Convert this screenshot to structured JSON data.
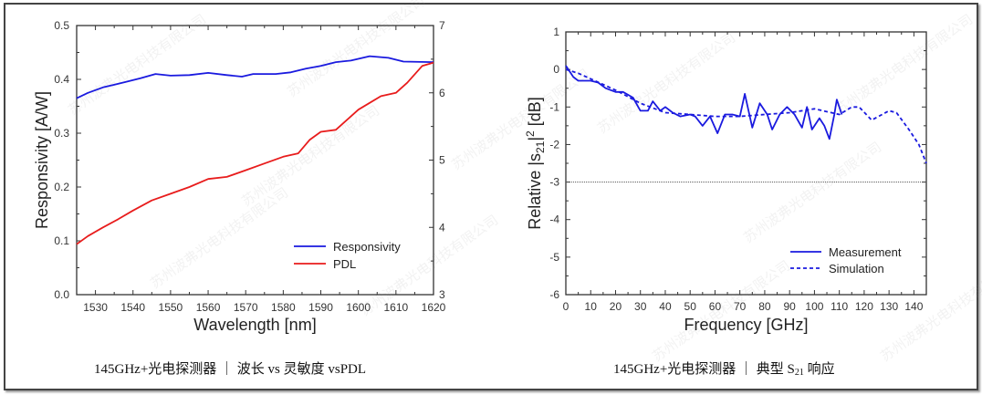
{
  "watermark": "苏州波弗光电科技有限公司",
  "captions": {
    "left": "145GHz+光电探测器 ｜ 波长 vs 灵敏度 vsPDL",
    "right_pre": "145GHz+光电探测器 ｜ 典型 S",
    "right_sub": "21",
    "right_post": " 响应"
  },
  "chart_data": [
    {
      "type": "line",
      "xlabel": "Wavelength  [nm]",
      "ylabel": "Responsivity  [A/W]",
      "xlim": [
        1525,
        1620
      ],
      "ylim": [
        0,
        0.5
      ],
      "y2lim": [
        3,
        7
      ],
      "xticks": [
        1530,
        1540,
        1550,
        1560,
        1570,
        1580,
        1590,
        1600,
        1610,
        1620
      ],
      "yticks": [
        "0.0",
        "0.1",
        "0.2",
        "0.3",
        "0.4",
        "0.5"
      ],
      "y2ticks": [
        "3",
        "4",
        "5",
        "6",
        "7"
      ],
      "grid": false,
      "legend_position": "bottom-right",
      "series": [
        {
          "name": "Responsivity",
          "axis": "left",
          "color": "#1a1adf",
          "x": [
            1525,
            1528,
            1532,
            1535,
            1538,
            1542,
            1546,
            1550,
            1555,
            1560,
            1565,
            1569,
            1572,
            1578,
            1582,
            1586,
            1590,
            1594,
            1598,
            1603,
            1608,
            1612,
            1620
          ],
          "y": [
            0.365,
            0.375,
            0.385,
            0.39,
            0.395,
            0.402,
            0.41,
            0.407,
            0.408,
            0.412,
            0.408,
            0.405,
            0.41,
            0.41,
            0.413,
            0.42,
            0.425,
            0.432,
            0.435,
            0.443,
            0.44,
            0.433,
            0.432
          ]
        },
        {
          "name": "PDL",
          "axis": "right",
          "color": "#e81c1c",
          "x": [
            1525,
            1528,
            1532,
            1536,
            1540,
            1545,
            1550,
            1555,
            1560,
            1565,
            1570,
            1575,
            1580,
            1584,
            1587,
            1590,
            1594,
            1597,
            1600,
            1603,
            1606,
            1610,
            1613,
            1617,
            1620
          ],
          "y": [
            3.75,
            3.87,
            4.0,
            4.12,
            4.25,
            4.4,
            4.5,
            4.6,
            4.72,
            4.75,
            4.85,
            4.95,
            5.05,
            5.1,
            5.3,
            5.42,
            5.45,
            5.6,
            5.75,
            5.85,
            5.95,
            6.0,
            6.15,
            6.4,
            6.45
          ]
        }
      ]
    },
    {
      "type": "line",
      "xlabel": "Frequency  [GHz]",
      "ylabel_parts": [
        "Relative |s",
        "21",
        "|",
        "2",
        "  [dB]"
      ],
      "xlim": [
        0,
        145
      ],
      "ylim": [
        -6,
        1
      ],
      "xticks": [
        0,
        10,
        20,
        30,
        40,
        50,
        60,
        70,
        80,
        90,
        100,
        110,
        120,
        130,
        140
      ],
      "yticks": [
        "-6",
        "-5",
        "-4",
        "-3",
        "-2",
        "-1",
        "0",
        "1"
      ],
      "reference_line": -3,
      "grid": false,
      "legend_position": "bottom-right",
      "series": [
        {
          "name": "Measurement",
          "style": "solid",
          "color": "#1a1adf",
          "x": [
            0,
            3,
            5,
            8,
            10,
            13,
            16,
            20,
            23,
            27,
            30,
            33,
            35,
            38,
            40,
            43,
            46,
            50,
            52,
            55,
            58,
            61,
            64,
            67,
            70,
            72,
            75,
            78,
            81,
            83,
            86,
            89,
            92,
            95,
            97,
            99,
            102,
            104,
            106,
            108,
            109,
            111
          ],
          "y": [
            0.1,
            -0.2,
            -0.3,
            -0.3,
            -0.3,
            -0.35,
            -0.5,
            -0.6,
            -0.6,
            -0.75,
            -1.1,
            -1.1,
            -0.85,
            -1.1,
            -1.0,
            -1.15,
            -1.25,
            -1.2,
            -1.25,
            -1.5,
            -1.25,
            -1.7,
            -1.2,
            -1.2,
            -1.25,
            -0.65,
            -1.55,
            -0.9,
            -1.2,
            -1.6,
            -1.2,
            -1.0,
            -1.2,
            -1.55,
            -1.0,
            -1.6,
            -1.3,
            -1.5,
            -1.85,
            -1.2,
            -0.8,
            -1.2
          ]
        },
        {
          "name": "Simulation",
          "style": "dashed",
          "color": "#1a1adf",
          "x": [
            0,
            5,
            10,
            20,
            30,
            40,
            50,
            60,
            70,
            80,
            90,
            100,
            110,
            115,
            118,
            123,
            130,
            133,
            138,
            142,
            145
          ],
          "y": [
            0,
            -0.1,
            -0.25,
            -0.55,
            -0.9,
            -1.15,
            -1.2,
            -1.25,
            -1.25,
            -1.2,
            -1.15,
            -1.05,
            -1.2,
            -1.0,
            -1.0,
            -1.35,
            -1.1,
            -1.15,
            -1.6,
            -2.0,
            -2.5
          ]
        }
      ]
    }
  ]
}
